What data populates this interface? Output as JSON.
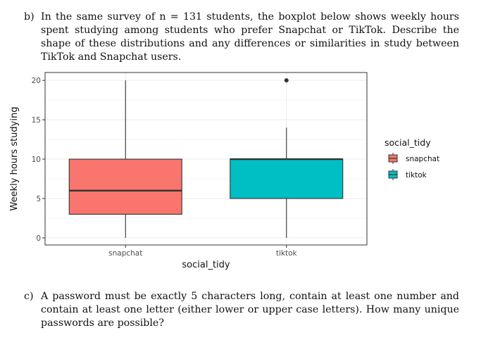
{
  "questions": {
    "b": {
      "label": "b)",
      "text": "In the same survey of n = 131 students, the boxplot below shows weekly hours spent studying among students who prefer Snapchat or TikTok. Describe the shape of these distributions and any differences or similarities in study between TikTok and Snapchat users."
    },
    "c": {
      "label": "c)",
      "text": "A password must be exactly 5 characters long, contain at least one number and contain at least one letter (either lower or upper case letters). How many unique passwords are possible?"
    }
  },
  "chart_data": {
    "type": "boxplot",
    "xlabel": "social_tidy",
    "ylabel": "Weekly hours studying",
    "categories": [
      "snapchat",
      "tiktok"
    ],
    "ylim": [
      -0.9,
      21
    ],
    "yticks": [
      0,
      5,
      10,
      15,
      20
    ],
    "grid": true,
    "legend": {
      "title": "social_tidy",
      "position": "right",
      "entries": [
        "snapchat",
        "tiktok"
      ]
    },
    "colors": {
      "snapchat": "#F8766D",
      "tiktok": "#00BFC4",
      "panel_border": "#333333",
      "grid": "#EBEBEB"
    },
    "boxes": [
      {
        "name": "snapchat",
        "min": 0,
        "q1": 3,
        "median": 6,
        "q3": 10,
        "max": 20,
        "outliers": []
      },
      {
        "name": "tiktok",
        "min": 0,
        "q1": 5,
        "median": 10,
        "q3": 10,
        "max": 14,
        "outliers": [
          20
        ]
      }
    ]
  }
}
